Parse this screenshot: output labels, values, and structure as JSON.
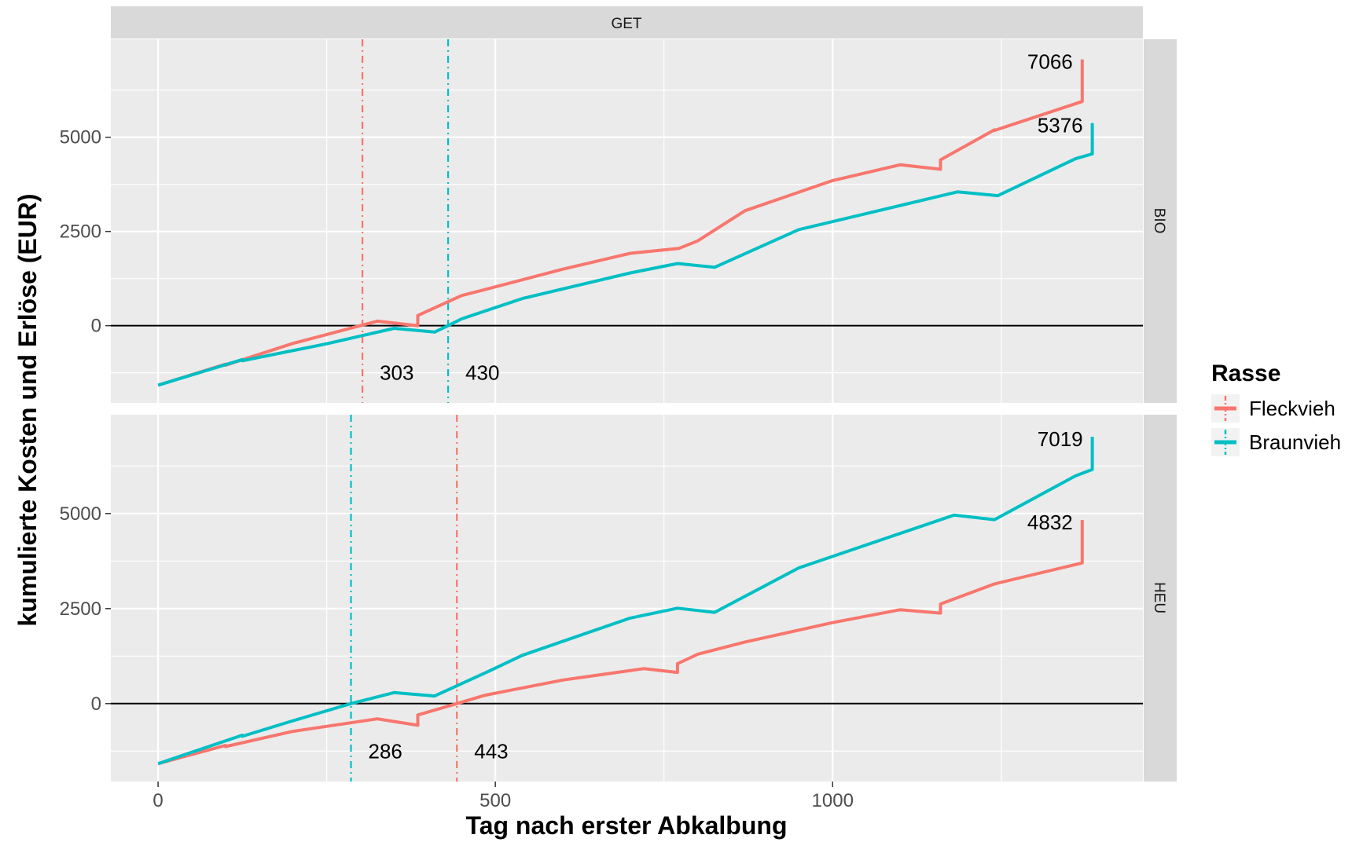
{
  "chart_data": {
    "type": "line",
    "strip_top": "GET",
    "xlabel": "Tag nach erster Abkalbung",
    "ylabel": "kumulierte Kosten und Erlöse (EUR)",
    "xlim": [
      -70,
      1460
    ],
    "ylim": [
      -2050,
      7600
    ],
    "x_ticks": [
      0,
      500,
      1000
    ],
    "y_ticks": [
      0,
      2500,
      5000
    ],
    "x_tick_labels": [
      "0",
      "500",
      "1000"
    ],
    "y_tick_labels": [
      "0",
      "2500",
      "5000"
    ],
    "colors": {
      "Fleckvieh": "#F8766D",
      "Braunvieh": "#00BFC4"
    },
    "legend": {
      "title": "Rasse",
      "position": "right",
      "items": [
        {
          "name": "Fleckvieh",
          "color": "#F8766D"
        },
        {
          "name": "Braunvieh",
          "color": "#00BFC4"
        }
      ]
    },
    "panels": [
      {
        "strip": "BIO",
        "series": [
          {
            "name": "Fleckvieh",
            "color": "#F8766D",
            "x": [
              0,
              100,
              100,
              200,
              300,
              325,
              385,
              385,
              450,
              485,
              485,
              600,
              700,
              772,
              772,
              800,
              870,
              870,
              1000,
              1100,
              1160,
              1160,
              1240,
              1240,
              1370,
              1370
            ],
            "y": [
              -1580,
              -1020,
              -1050,
              -470,
              0,
              120,
              0,
              270,
              800,
              960,
              960,
              1500,
              1920,
              2050,
              2050,
              2250,
              3050,
              3050,
              3850,
              4270,
              4150,
              4400,
              5200,
              5180,
              5950,
              7066
            ]
          },
          {
            "name": "Braunvieh",
            "color": "#00BFC4",
            "x": [
              0,
              125,
              125,
              250,
              350,
              410,
              410,
              430,
              450,
              540,
              540,
              700,
              770,
              825,
              825,
              950,
              950,
              1185,
              1245,
              1245,
              1360,
              1360,
              1385,
              1385
            ],
            "y": [
              -1580,
              -900,
              -930,
              -480,
              -70,
              -170,
              -170,
              0,
              180,
              720,
              720,
              1400,
              1650,
              1550,
              1550,
              2550,
              2550,
              3550,
              3450,
              3450,
              4430,
              4430,
              4560,
              5376
            ]
          }
        ],
        "crossings": [
          {
            "series": "Fleckvieh",
            "x": 303,
            "label": "303",
            "color": "#F8766D"
          },
          {
            "series": "Braunvieh",
            "x": 430,
            "label": "430",
            "color": "#00BFC4"
          }
        ],
        "end_labels": [
          {
            "series": "Fleckvieh",
            "x": 1370,
            "y": 7066,
            "label": "7066"
          },
          {
            "series": "Braunvieh",
            "x": 1385,
            "y": 5376,
            "label": "5376"
          }
        ]
      },
      {
        "strip": "HEU",
        "series": [
          {
            "name": "Fleckvieh",
            "color": "#F8766D",
            "x": [
              0,
              100,
              100,
              200,
              325,
              385,
              385,
              443,
              485,
              485,
              600,
              720,
              770,
              770,
              800,
              870,
              870,
              1000,
              1100,
              1160,
              1160,
              1240,
              1240,
              1370,
              1370
            ],
            "y": [
              -1580,
              -1100,
              -1130,
              -730,
              -400,
              -570,
              -300,
              0,
              220,
              220,
              620,
              920,
              820,
              1050,
              1300,
              1620,
              1620,
              2130,
              2470,
              2380,
              2620,
              3150,
              3150,
              3700,
              4832
            ]
          },
          {
            "name": "Braunvieh",
            "color": "#00BFC4",
            "x": [
              0,
              125,
              125,
              200,
              286,
              350,
              410,
              410,
              490,
              540,
              540,
              700,
              770,
              825,
              825,
              950,
              950,
              1180,
              1240,
              1240,
              1360,
              1360,
              1385,
              1385
            ],
            "y": [
              -1580,
              -830,
              -860,
              -450,
              0,
              290,
              200,
              200,
              850,
              1270,
              1270,
              2250,
              2510,
              2400,
              2400,
              3570,
              3570,
              4960,
              4840,
              4840,
              5990,
              5990,
              6160,
              7019
            ]
          }
        ],
        "crossings": [
          {
            "series": "Braunvieh",
            "x": 286,
            "label": "286",
            "color": "#00BFC4"
          },
          {
            "series": "Fleckvieh",
            "x": 443,
            "label": "443",
            "color": "#F8766D"
          }
        ],
        "end_labels": [
          {
            "series": "Braunvieh",
            "x": 1385,
            "y": 7019,
            "label": "7019"
          },
          {
            "series": "Fleckvieh",
            "x": 1370,
            "y": 4832,
            "label": "4832"
          }
        ]
      }
    ]
  }
}
